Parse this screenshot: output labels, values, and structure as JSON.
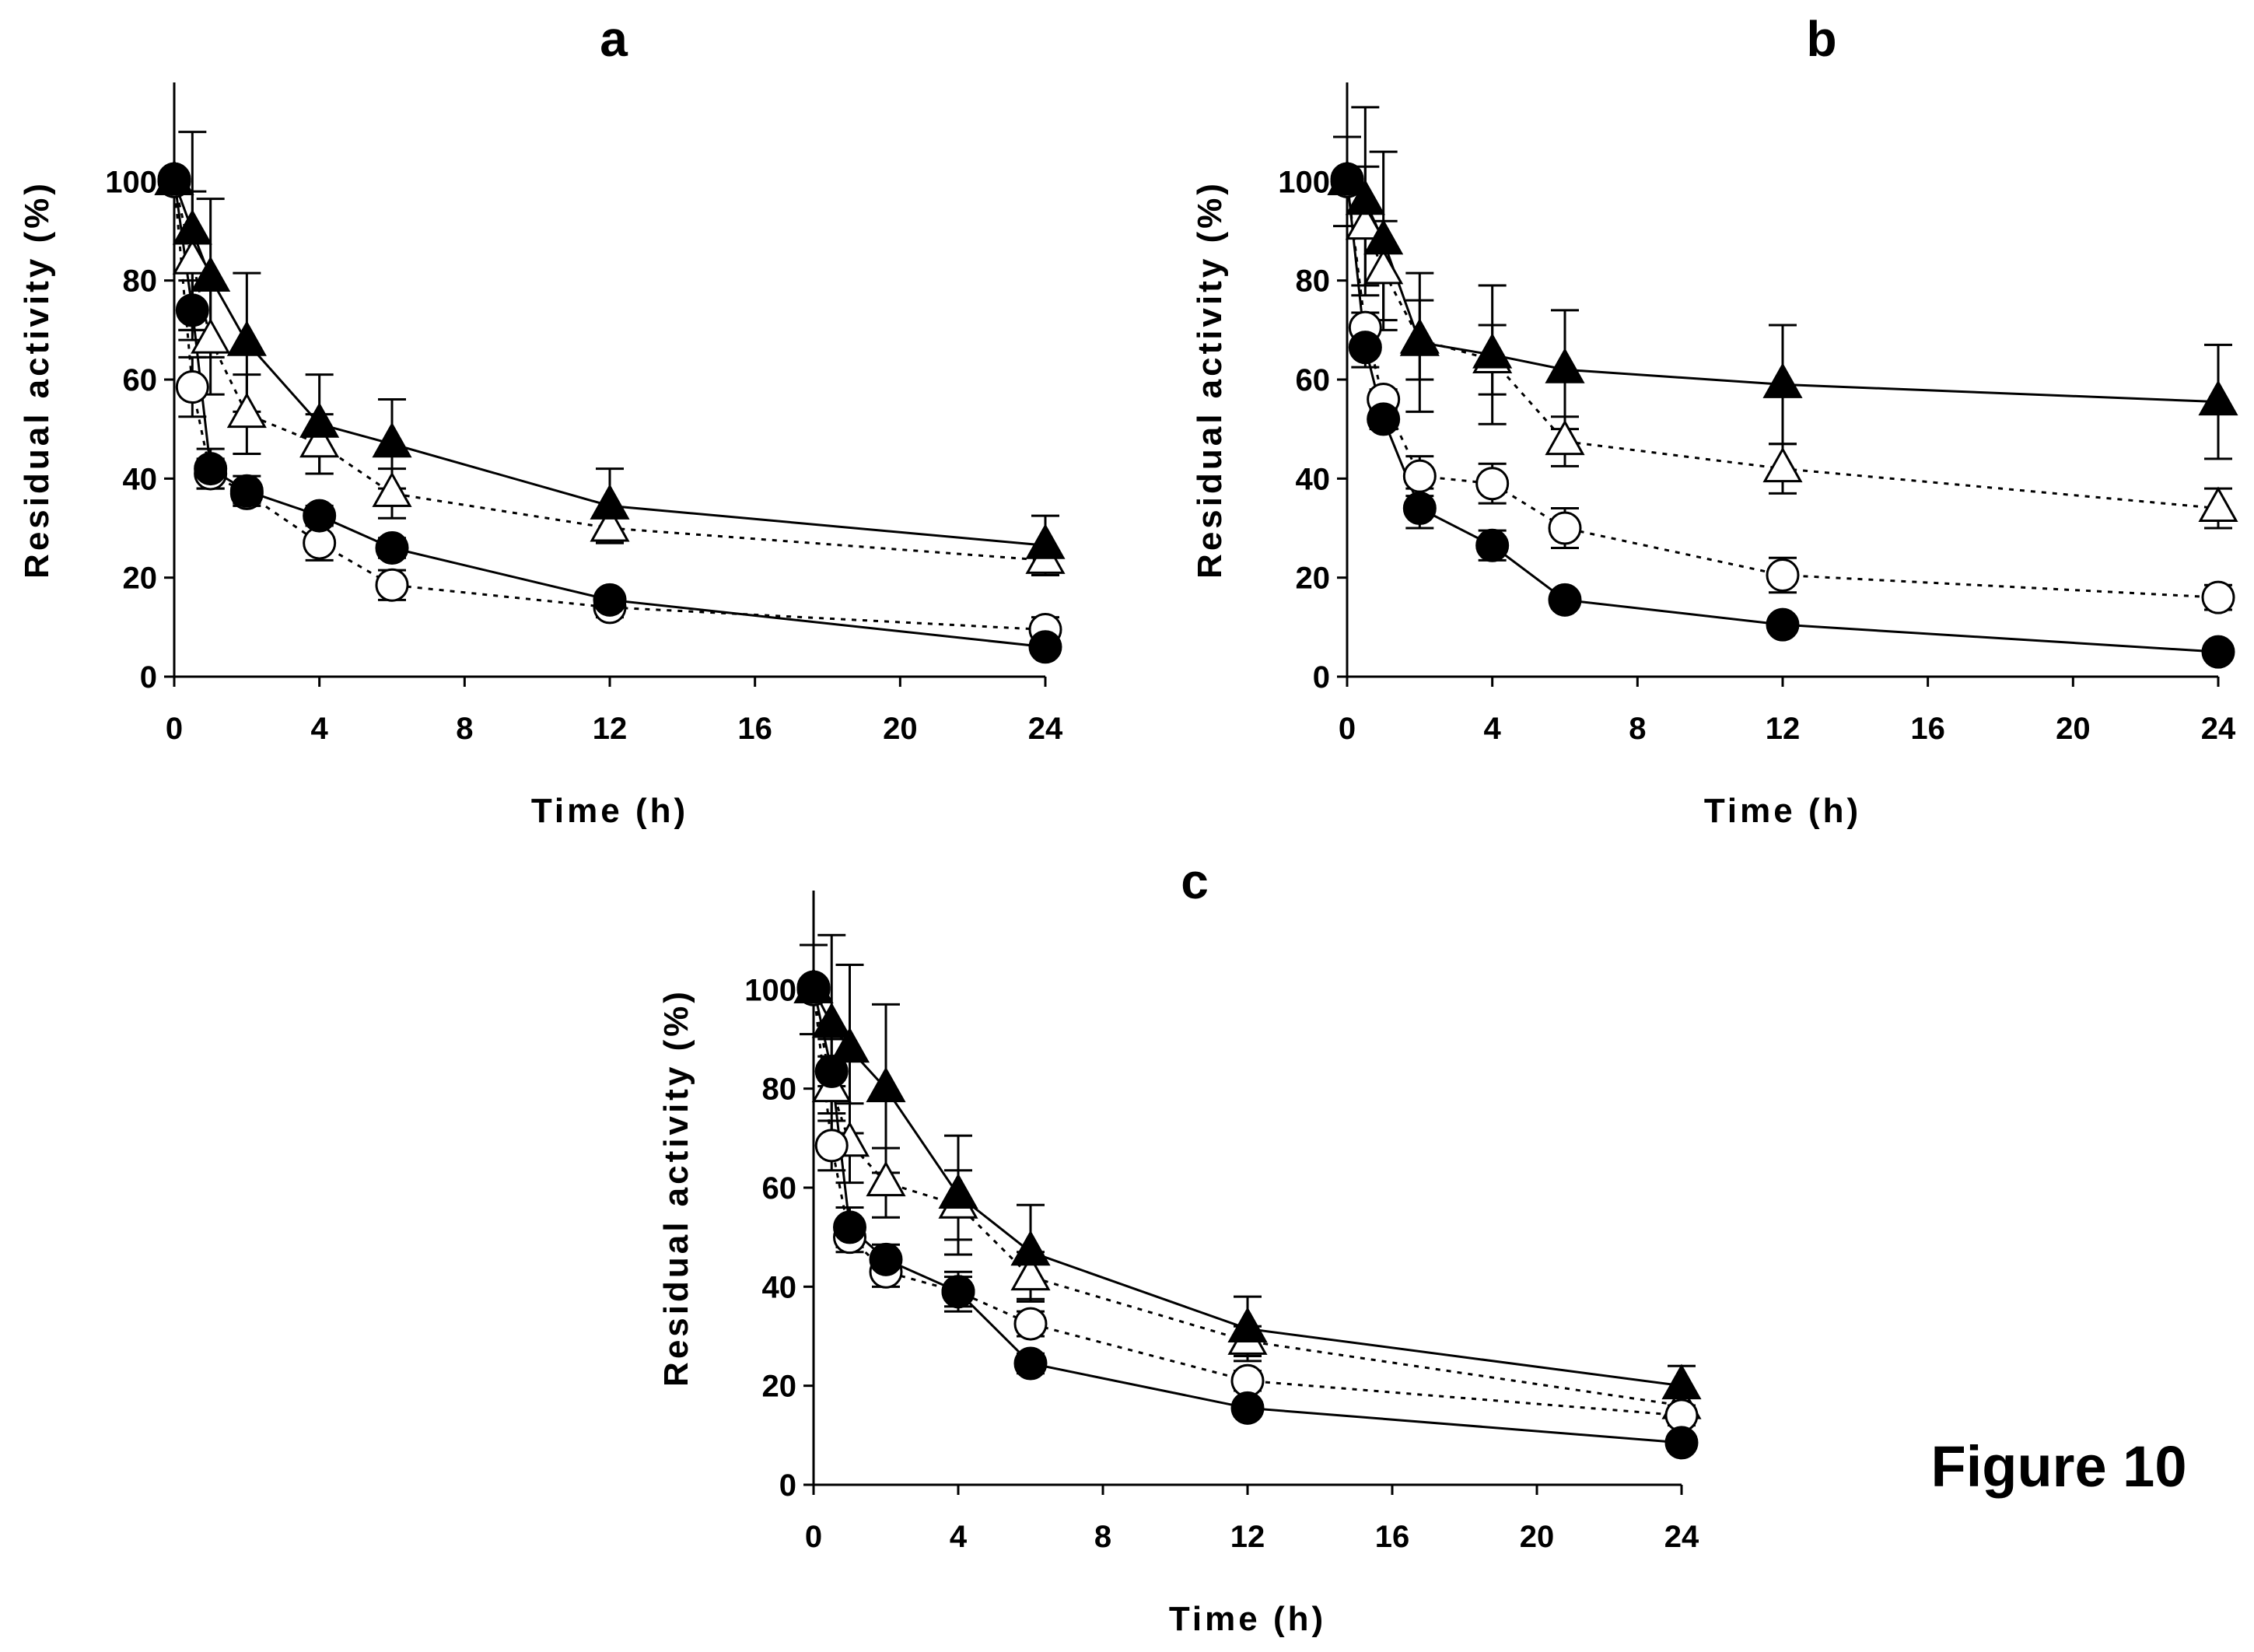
{
  "figure_label": "Figure 10",
  "colors": {
    "ink": "#000000",
    "background": "#ffffff"
  },
  "chart_data": [
    {
      "type": "line",
      "title": "a",
      "xlabel": "Time (h)",
      "ylabel": "Residual activity (%)",
      "x": [
        0,
        0.5,
        1,
        2,
        4,
        6,
        12,
        24
      ],
      "xlim": [
        0,
        24
      ],
      "ylim": [
        0,
        120
      ],
      "x_ticks": [
        0,
        4,
        8,
        12,
        16,
        20,
        24
      ],
      "y_ticks": [
        0,
        20,
        40,
        60,
        80,
        100
      ],
      "grid": false,
      "series": [
        {
          "marker": "triangle",
          "filled": false,
          "dashed": true,
          "values": [
            100,
            84,
            68,
            53,
            47,
            37,
            30,
            23.5
          ],
          "errors": [
            0,
            14,
            11,
            8,
            6,
            5,
            3,
            2
          ]
        },
        {
          "marker": "circle",
          "filled": false,
          "dashed": true,
          "values": [
            100,
            58.5,
            41,
            37,
            27,
            18.5,
            14,
            9.5
          ],
          "errors": [
            0,
            6,
            3,
            2,
            3.5,
            3,
            2,
            2.5
          ]
        },
        {
          "marker": "triangle",
          "filled": true,
          "dashed": false,
          "values": [
            100,
            90,
            80.5,
            67.5,
            51,
            47,
            34.5,
            26.5
          ],
          "errors": [
            0,
            20,
            16,
            14,
            10,
            9,
            7.5,
            6
          ]
        },
        {
          "marker": "circle",
          "filled": true,
          "dashed": false,
          "values": [
            100.5,
            74,
            42,
            37.5,
            32.5,
            26,
            15.5,
            6
          ],
          "errors": [
            0,
            6,
            4,
            3,
            2,
            2,
            1.5,
            1
          ]
        }
      ]
    },
    {
      "type": "line",
      "title": "b",
      "xlabel": "Time (h)",
      "ylabel": "Residual activity (%)",
      "x": [
        0,
        0.5,
        1,
        2,
        4,
        6,
        12,
        24
      ],
      "xlim": [
        0,
        24
      ],
      "ylim": [
        0,
        120
      ],
      "x_ticks": [
        0,
        4,
        8,
        12,
        16,
        20,
        24
      ],
      "y_ticks": [
        0,
        20,
        40,
        60,
        80,
        100
      ],
      "grid": false,
      "series": [
        {
          "marker": "triangle",
          "filled": false,
          "dashed": true,
          "values": [
            100,
            91,
            82,
            68,
            64,
            47.5,
            42,
            34
          ],
          "errors": [
            0,
            12,
            10,
            8,
            7,
            5,
            5,
            4
          ]
        },
        {
          "marker": "circle",
          "filled": false,
          "dashed": true,
          "values": [
            100,
            70.5,
            56,
            40.5,
            39,
            30,
            20.5,
            16
          ],
          "errors": [
            0,
            3,
            2,
            4,
            4,
            4,
            3.5,
            2.5
          ]
        },
        {
          "marker": "triangle",
          "filled": true,
          "dashed": false,
          "values": [
            100,
            96,
            88,
            67.5,
            65,
            62,
            59,
            55.5
          ],
          "errors": [
            9,
            19,
            18,
            14,
            14,
            12,
            12,
            11.5
          ]
        },
        {
          "marker": "circle",
          "filled": true,
          "dashed": false,
          "values": [
            100.5,
            66.5,
            52,
            34,
            26.5,
            15.5,
            10.5,
            5
          ],
          "errors": [
            0,
            4,
            2,
            4,
            3,
            1.5,
            1,
            1
          ]
        }
      ]
    },
    {
      "type": "line",
      "title": "c",
      "xlabel": "Time (h)",
      "ylabel": "Residual activity (%)",
      "x": [
        0,
        0.5,
        1,
        2,
        4,
        6,
        12,
        24
      ],
      "xlim": [
        0,
        24
      ],
      "ylim": [
        0,
        120
      ],
      "x_ticks": [
        0,
        4,
        8,
        12,
        16,
        20,
        24
      ],
      "y_ticks": [
        0,
        20,
        40,
        60,
        80,
        100
      ],
      "grid": false,
      "series": [
        {
          "marker": "triangle",
          "filled": false,
          "dashed": true,
          "values": [
            100,
            80,
            69,
            61,
            56.5,
            42,
            29,
            16
          ],
          "errors": [
            0,
            10,
            8,
            7,
            7,
            5,
            3,
            2
          ]
        },
        {
          "marker": "circle",
          "filled": false,
          "dashed": true,
          "values": [
            100,
            68.5,
            50,
            43,
            39,
            32.5,
            21,
            14
          ],
          "errors": [
            0,
            5,
            3,
            3,
            3,
            2.5,
            2,
            2
          ]
        },
        {
          "marker": "triangle",
          "filled": true,
          "dashed": false,
          "values": [
            100,
            93,
            88,
            80,
            58.5,
            47,
            31.5,
            20
          ],
          "errors": [
            9,
            18,
            17,
            17,
            12,
            9.5,
            6.5,
            4
          ]
        },
        {
          "marker": "circle",
          "filled": true,
          "dashed": false,
          "values": [
            100.5,
            83.5,
            52,
            45.5,
            39,
            24.5,
            15.5,
            8.5
          ],
          "errors": [
            0,
            3,
            4,
            3,
            4,
            2,
            1.5,
            1
          ]
        }
      ]
    }
  ]
}
